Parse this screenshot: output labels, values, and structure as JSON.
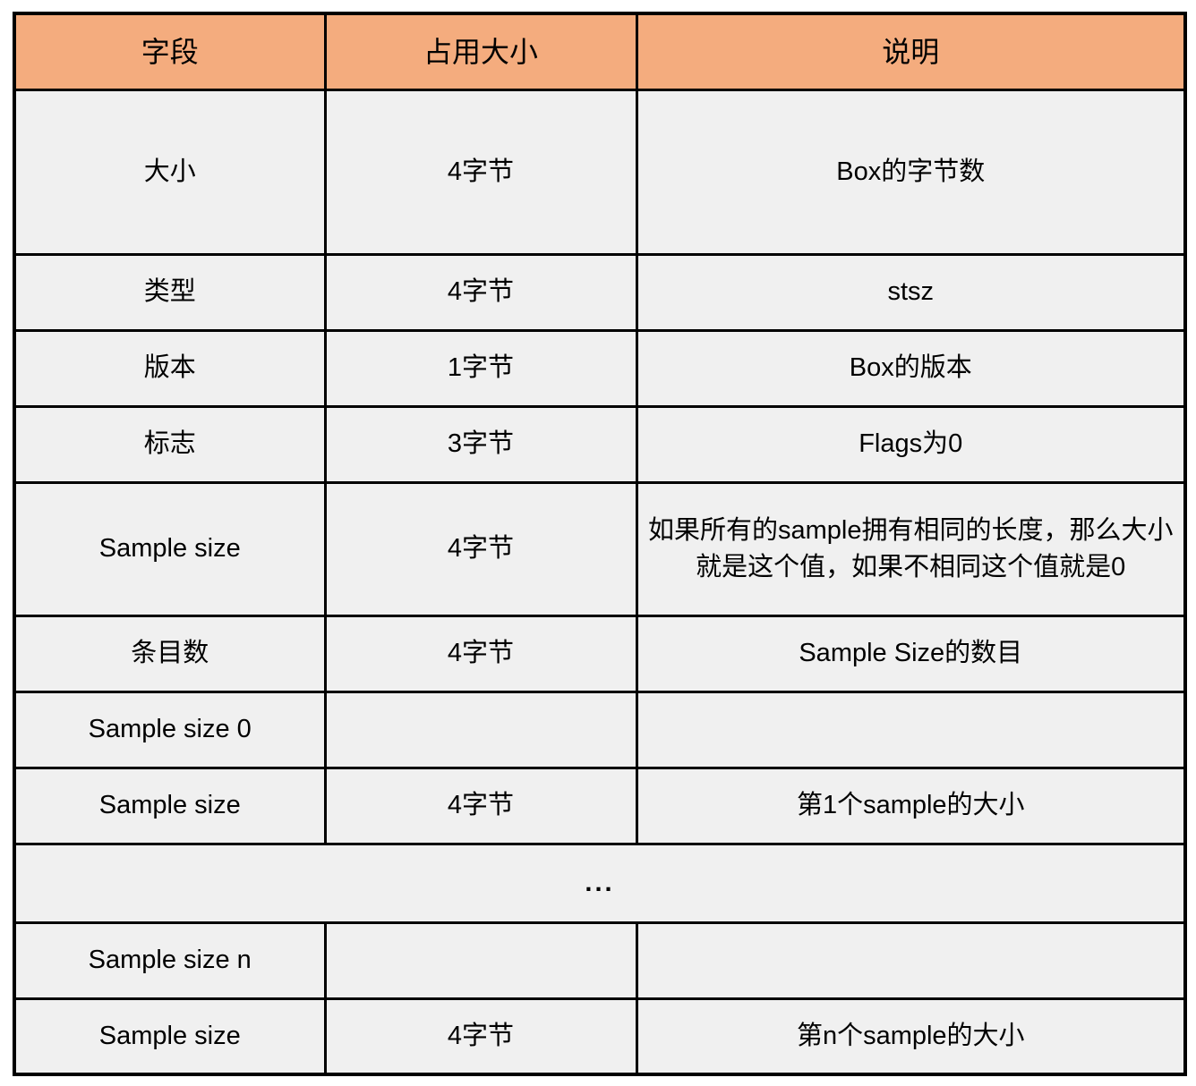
{
  "colors": {
    "header_bg": "#F4AC7E",
    "row_bg": "#F0F0F0",
    "border": "#000000",
    "page_bg": "#FFFFFF"
  },
  "table": {
    "columns": [
      "字段",
      "占用大小",
      "说明"
    ],
    "rows": [
      {
        "cells": [
          "大小",
          "4字节",
          "Box的字节数"
        ]
      },
      {
        "cells": [
          "类型",
          "4字节",
          "stsz"
        ]
      },
      {
        "cells": [
          "版本",
          "1字节",
          "Box的版本"
        ]
      },
      {
        "cells": [
          "标志",
          "3字节",
          "Flags为0"
        ]
      },
      {
        "cells": [
          "Sample size",
          "4字节",
          "如果所有的sample拥有相同的长度，那么大小就是这个值，如果不相同这个值就是0"
        ]
      },
      {
        "cells": [
          "条目数",
          "4字节",
          "Sample Size的数目"
        ]
      },
      {
        "cells": [
          "Sample size 0",
          "",
          ""
        ]
      },
      {
        "cells": [
          "Sample size",
          "4字节",
          "第1个sample的大小"
        ]
      },
      {
        "cells": [
          "Sample size n",
          "",
          ""
        ]
      },
      {
        "cells": [
          "Sample size",
          "4字节",
          "第n个sample的大小"
        ]
      }
    ],
    "ellipsis": "..."
  }
}
